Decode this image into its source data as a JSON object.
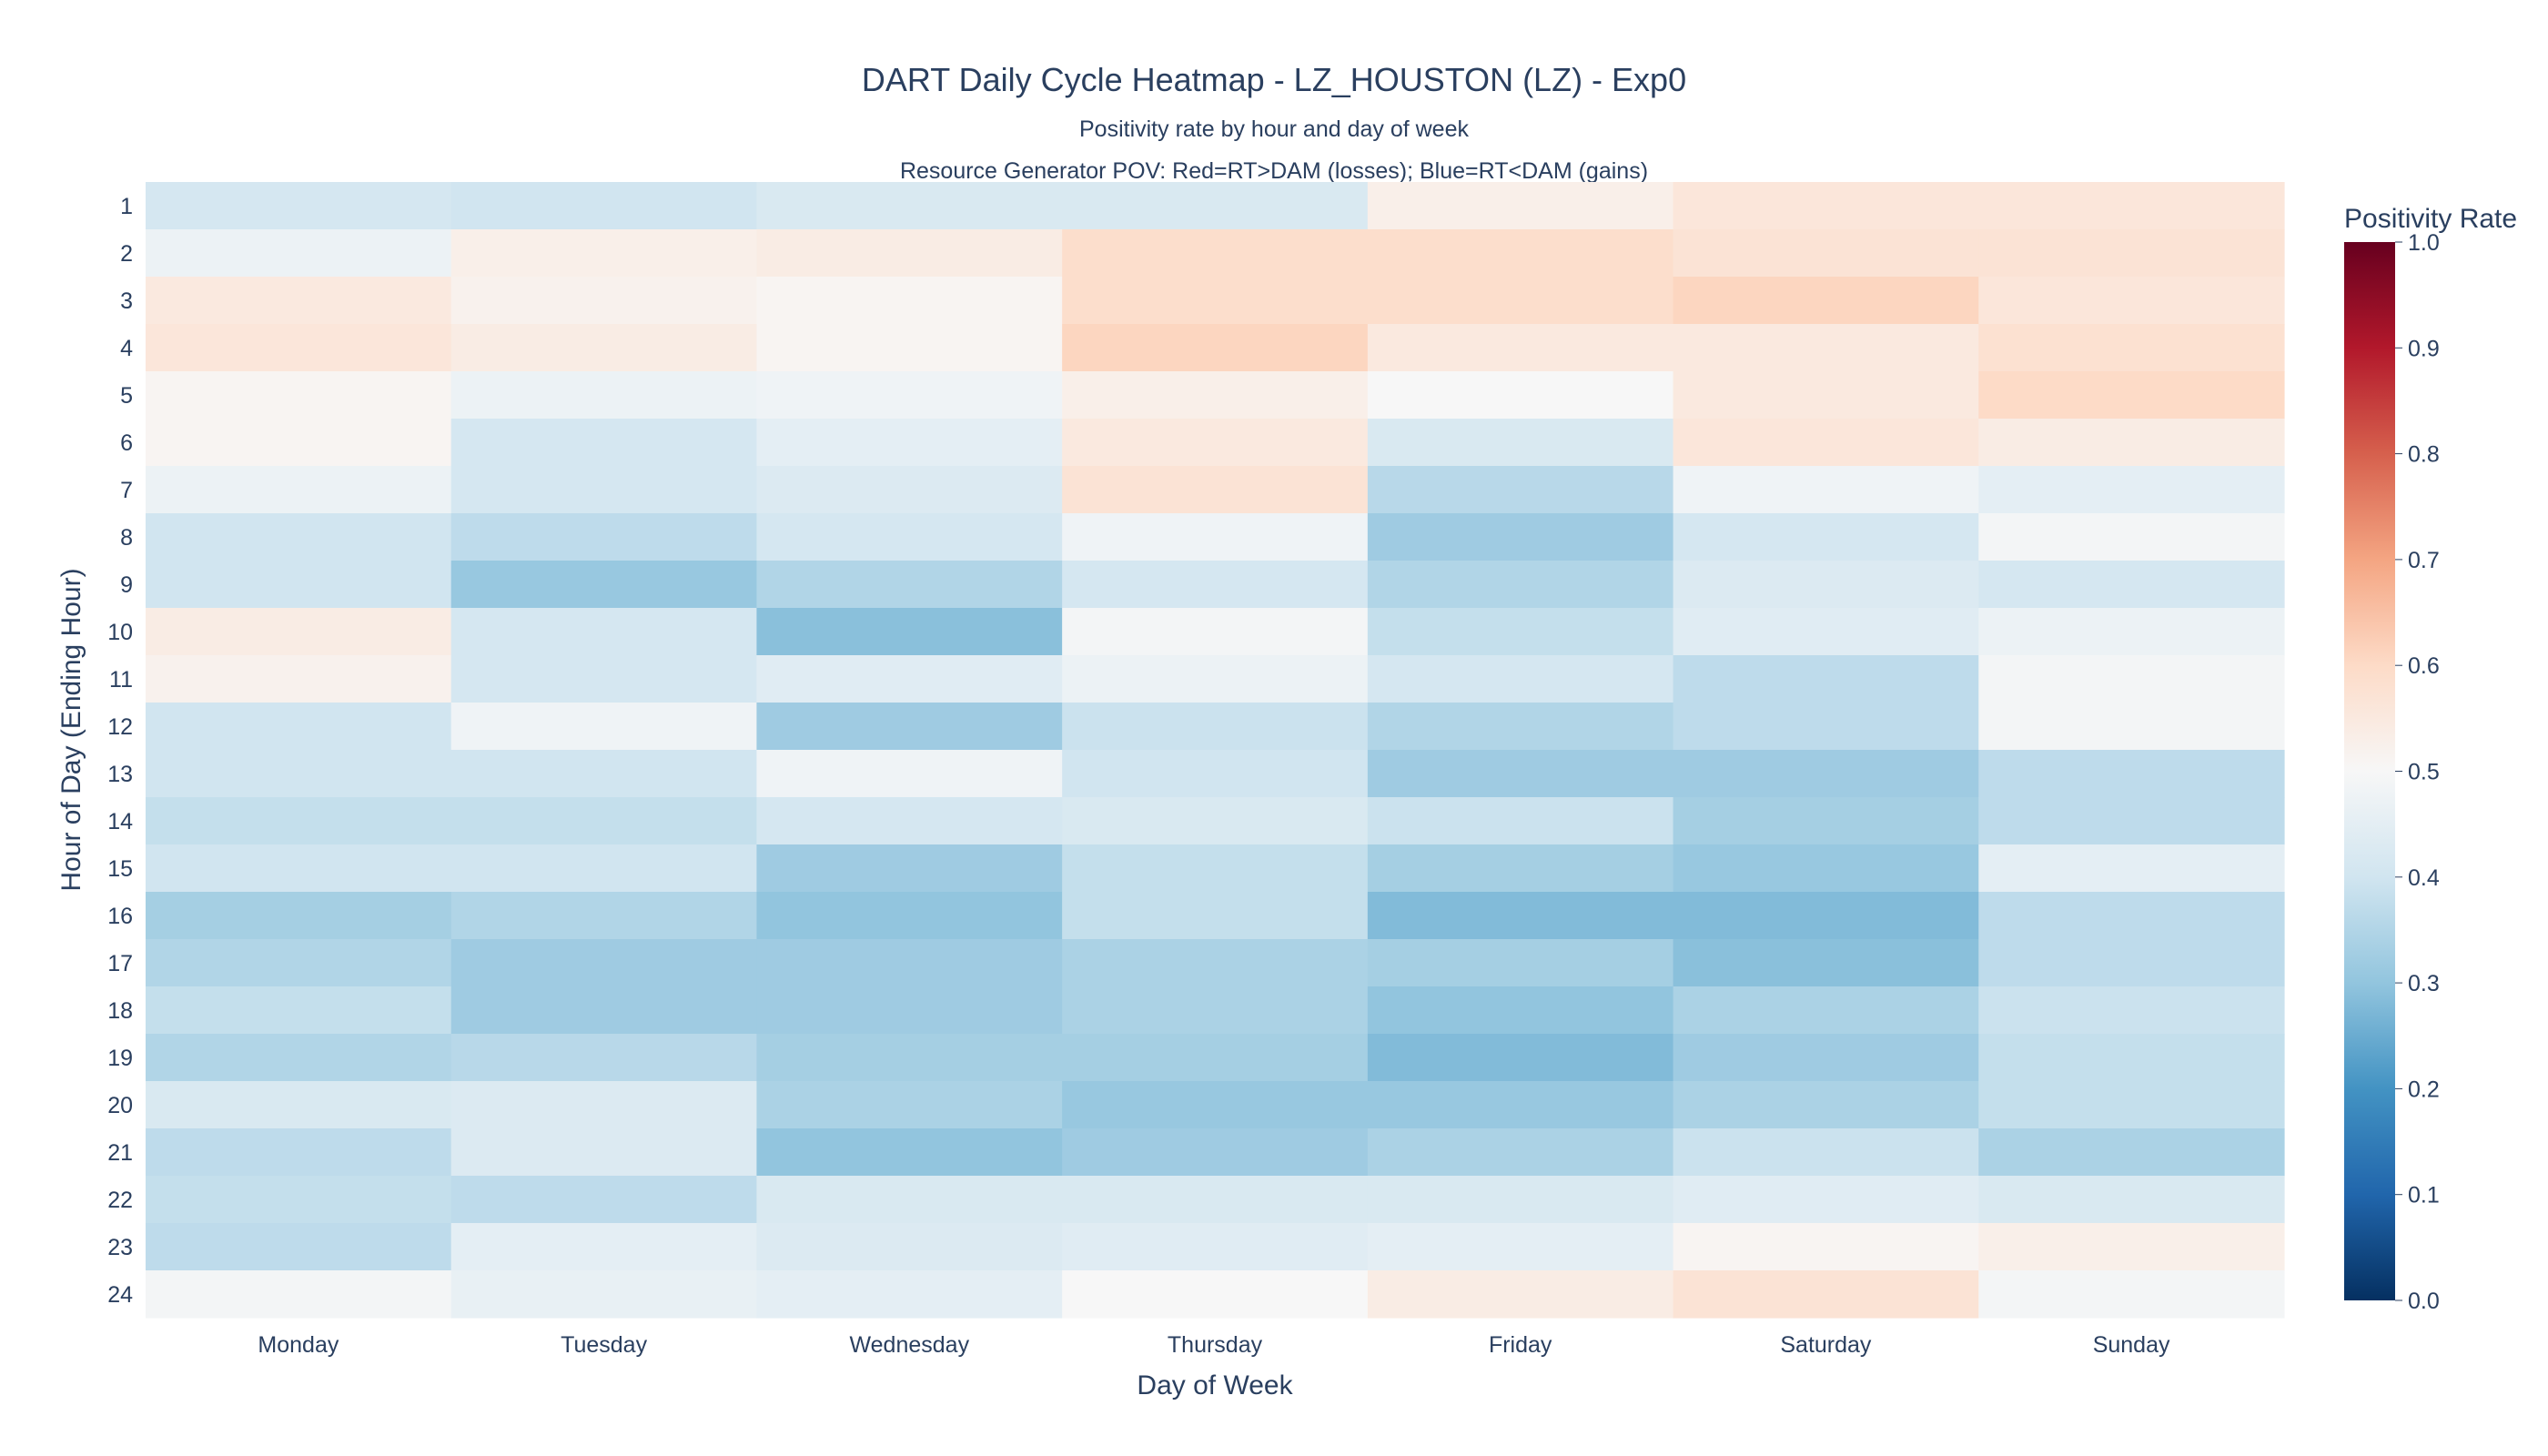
{
  "chart_data": {
    "type": "heatmap",
    "title": "DART Daily Cycle Heatmap - LZ_HOUSTON (LZ) - Exp0",
    "subtitle": "Positivity rate by hour and day of week",
    "subtitle2": "Resource Generator POV: Red=RT>DAM (losses); Blue=RT<DAM (gains)",
    "xlabel": "Day of Week",
    "ylabel": "Hour of Day (Ending Hour)",
    "colorbar_title": "Positivity Rate",
    "colorscale": "RdBu (reversed)",
    "zrange": [
      0,
      1
    ],
    "colorbar_ticks": [
      "0.0",
      "0.1",
      "0.2",
      "0.3",
      "0.4",
      "0.5",
      "0.6",
      "0.7",
      "0.8",
      "0.9",
      "1.0"
    ],
    "x": [
      "Monday",
      "Tuesday",
      "Wednesday",
      "Thursday",
      "Friday",
      "Saturday",
      "Sunday"
    ],
    "y": [
      "1",
      "2",
      "3",
      "4",
      "5",
      "6",
      "7",
      "8",
      "9",
      "10",
      "11",
      "12",
      "13",
      "14",
      "15",
      "16",
      "17",
      "18",
      "19",
      "20",
      "21",
      "22",
      "23",
      "24"
    ],
    "z": [
      [
        0.41,
        0.4,
        0.42,
        0.42,
        0.53,
        0.56,
        0.56
      ],
      [
        0.47,
        0.53,
        0.54,
        0.59,
        0.59,
        0.57,
        0.57
      ],
      [
        0.55,
        0.52,
        0.51,
        0.59,
        0.59,
        0.61,
        0.56
      ],
      [
        0.56,
        0.54,
        0.51,
        0.61,
        0.55,
        0.55,
        0.58
      ],
      [
        0.51,
        0.47,
        0.48,
        0.53,
        0.5,
        0.55,
        0.6
      ],
      [
        0.51,
        0.41,
        0.45,
        0.55,
        0.42,
        0.56,
        0.54
      ],
      [
        0.47,
        0.41,
        0.43,
        0.57,
        0.36,
        0.48,
        0.45
      ],
      [
        0.4,
        0.37,
        0.41,
        0.48,
        0.32,
        0.41,
        0.49
      ],
      [
        0.4,
        0.31,
        0.35,
        0.41,
        0.35,
        0.43,
        0.41
      ],
      [
        0.54,
        0.41,
        0.29,
        0.49,
        0.38,
        0.44,
        0.47
      ],
      [
        0.52,
        0.41,
        0.44,
        0.47,
        0.41,
        0.37,
        0.49
      ],
      [
        0.4,
        0.48,
        0.32,
        0.39,
        0.35,
        0.37,
        0.49
      ],
      [
        0.4,
        0.4,
        0.48,
        0.4,
        0.32,
        0.32,
        0.37
      ],
      [
        0.38,
        0.38,
        0.41,
        0.42,
        0.39,
        0.33,
        0.37
      ],
      [
        0.4,
        0.4,
        0.32,
        0.38,
        0.33,
        0.31,
        0.45
      ],
      [
        0.33,
        0.35,
        0.3,
        0.38,
        0.28,
        0.28,
        0.37
      ],
      [
        0.35,
        0.32,
        0.32,
        0.34,
        0.33,
        0.29,
        0.37
      ],
      [
        0.38,
        0.32,
        0.32,
        0.34,
        0.3,
        0.34,
        0.39
      ],
      [
        0.35,
        0.36,
        0.33,
        0.33,
        0.28,
        0.32,
        0.38
      ],
      [
        0.42,
        0.43,
        0.34,
        0.31,
        0.31,
        0.34,
        0.38
      ],
      [
        0.37,
        0.43,
        0.3,
        0.32,
        0.34,
        0.39,
        0.34
      ],
      [
        0.38,
        0.37,
        0.42,
        0.42,
        0.42,
        0.44,
        0.42
      ],
      [
        0.37,
        0.45,
        0.43,
        0.44,
        0.45,
        0.51,
        0.53
      ],
      [
        0.49,
        0.46,
        0.45,
        0.5,
        0.54,
        0.57,
        0.49
      ]
    ]
  }
}
